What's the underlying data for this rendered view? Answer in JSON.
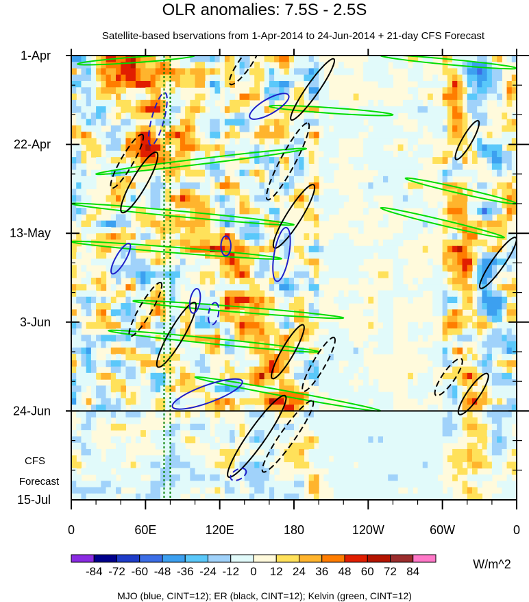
{
  "chart_data": {
    "type": "heatmap",
    "title": "OLR anomalies: 7.5S - 2.5S",
    "subtitle": "Satellite-based bservations from 1-Apr-2014 to 24-Jun-2014 + 21-day CFS Forecast",
    "x_ticks": [
      "0",
      "60E",
      "120E",
      "180",
      "120W",
      "60W",
      "0"
    ],
    "x_tick_values": [
      0,
      60,
      120,
      180,
      240,
      300,
      360
    ],
    "x_range": [
      0,
      360
    ],
    "y_ticks": [
      "1-Apr",
      "22-Apr",
      "13-May",
      "3-Jun",
      "24-Jun",
      "15-Jul"
    ],
    "y_tick_days": [
      0,
      21,
      42,
      63,
      84,
      105
    ],
    "y_range_days": [
      0,
      105
    ],
    "observation_end_label": "24-Jun",
    "forecast_label": [
      "CFS",
      "Forecast"
    ],
    "colorbar": {
      "unit": "W/m^2",
      "labels": [
        "-84",
        "-72",
        "-60",
        "-48",
        "-36",
        "-24",
        "-12",
        "0",
        "12",
        "24",
        "36",
        "48",
        "60",
        "72",
        "84"
      ],
      "colors": [
        "#8a2be2",
        "#00008b",
        "#1e3cc8",
        "#3c6ee6",
        "#3ca0f0",
        "#5ac8fa",
        "#a0d2fa",
        "#e1fafa",
        "#fffadc",
        "#ffe15a",
        "#ffb42d",
        "#ff7d00",
        "#e11e00",
        "#b41400",
        "#9b2d2d",
        "#ff78c8"
      ]
    },
    "contours_note": "MJO (blue, CINT=12); ER (black, CINT=12); Kelvin (green, CINT=12)",
    "contour_colors": {
      "MJO": "#1e1ec8",
      "ER": "#000000",
      "Kelvin": "#00dc00"
    },
    "reference_longitudes": [
      75,
      80
    ],
    "reference_line_color": "#008000",
    "features": {
      "anomaly_bands": [
        {
          "lon0": 10,
          "lon1": 185,
          "day0": 0,
          "day1": 105,
          "width": 40,
          "value": 30
        },
        {
          "lon0": 5,
          "lon1": 165,
          "day0": 0,
          "day1": 95,
          "width": 30,
          "value": -36
        },
        {
          "lon0": 45,
          "lon1": 200,
          "day0": 8,
          "day1": 100,
          "width": 22,
          "value": 24
        },
        {
          "lon0": 310,
          "lon1": 330,
          "day0": 0,
          "day1": 100,
          "width": 14,
          "value": 24
        },
        {
          "lon0": 325,
          "lon1": 345,
          "day0": 0,
          "day1": 100,
          "width": 10,
          "value": -24
        }
      ],
      "kelvin_waves": [
        {
          "lon0": 5,
          "day0": 2,
          "lon1": 100,
          "day1": 0
        },
        {
          "lon0": 20,
          "day0": 28,
          "lon1": 190,
          "day1": 22
        },
        {
          "lon0": 0,
          "day0": 35,
          "lon1": 180,
          "day1": 40
        },
        {
          "lon0": 0,
          "day0": 44,
          "lon1": 170,
          "day1": 48
        },
        {
          "lon0": 50,
          "day0": 58,
          "lon1": 220,
          "day1": 62
        },
        {
          "lon0": 30,
          "day0": 65,
          "lon1": 200,
          "day1": 70
        },
        {
          "lon0": 100,
          "day0": 76,
          "lon1": 250,
          "day1": 84
        },
        {
          "lon0": 250,
          "day0": 0,
          "lon1": 360,
          "day1": 3
        },
        {
          "lon0": 270,
          "day0": 29,
          "lon1": 360,
          "day1": 35
        },
        {
          "lon0": 250,
          "day0": 36,
          "lon1": 350,
          "day1": 43
        },
        {
          "lon0": 160,
          "day0": 12,
          "lon1": 260,
          "day1": 14
        }
      ],
      "er_waves": [
        {
          "lon": 195,
          "day": 8,
          "len": 30,
          "width": 5,
          "angle": -55,
          "dashed": false
        },
        {
          "lon": 55,
          "day": 30,
          "len": 28,
          "width": 6,
          "angle": -60,
          "dashed": false
        },
        {
          "lon": 180,
          "day": 38,
          "len": 30,
          "width": 6,
          "angle": -58,
          "dashed": false
        },
        {
          "lon": 175,
          "day": 25,
          "len": 35,
          "width": 6,
          "angle": -62,
          "dashed": true
        },
        {
          "lon": 45,
          "day": 25,
          "len": 25,
          "width": 5,
          "angle": -60,
          "dashed": true
        },
        {
          "lon": 85,
          "day": 66,
          "len": 30,
          "width": 6,
          "angle": -60,
          "dashed": false
        },
        {
          "lon": 60,
          "day": 60,
          "len": 25,
          "width": 5,
          "angle": -60,
          "dashed": true
        },
        {
          "lon": 150,
          "day": 90,
          "len": 40,
          "width": 7,
          "angle": -55,
          "dashed": false
        },
        {
          "lon": 175,
          "day": 90,
          "len": 35,
          "width": 6,
          "angle": -55,
          "dashed": true
        },
        {
          "lon": 175,
          "day": 70,
          "len": 25,
          "width": 5,
          "angle": -60,
          "dashed": false
        },
        {
          "lon": 200,
          "day": 73,
          "len": 25,
          "width": 5,
          "angle": -60,
          "dashed": true
        },
        {
          "lon": 325,
          "day": 80,
          "len": 20,
          "width": 5,
          "angle": -55,
          "dashed": false
        },
        {
          "lon": 305,
          "day": 76,
          "len": 18,
          "width": 5,
          "angle": -55,
          "dashed": true
        },
        {
          "lon": 345,
          "day": 49,
          "len": 25,
          "width": 5,
          "angle": -55,
          "dashed": false
        },
        {
          "lon": 320,
          "day": 20,
          "len": 18,
          "width": 4,
          "angle": -60,
          "dashed": false
        },
        {
          "lon": 140,
          "day": 2,
          "len": 20,
          "width": 5,
          "angle": -55,
          "dashed": true
        }
      ],
      "mjo_waves": [
        {
          "lon": 70,
          "day": 15,
          "len": 22,
          "width": 5,
          "angle": -75,
          "dashed": true
        },
        {
          "lon": 160,
          "day": 12,
          "len": 18,
          "width": 6,
          "angle": -30,
          "dashed": false
        },
        {
          "lon": 170,
          "day": 47,
          "len": 22,
          "width": 6,
          "angle": -80,
          "dashed": false
        },
        {
          "lon": 125,
          "day": 45,
          "len": 8,
          "width": 4,
          "angle": -90,
          "dashed": false
        },
        {
          "lon": 110,
          "day": 80,
          "len": 30,
          "width": 7,
          "angle": -20,
          "dashed": false
        },
        {
          "lon": 40,
          "day": 48,
          "len": 14,
          "width": 4,
          "angle": -60,
          "dashed": false
        },
        {
          "lon": 135,
          "day": 99,
          "len": 7,
          "width": 4,
          "angle": -30,
          "dashed": true
        },
        {
          "lon": 100,
          "day": 58,
          "len": 10,
          "width": 4,
          "angle": -80,
          "dashed": false
        },
        {
          "lon": 115,
          "day": 61,
          "len": 9,
          "width": 4,
          "angle": -80,
          "dashed": true
        }
      ]
    }
  }
}
